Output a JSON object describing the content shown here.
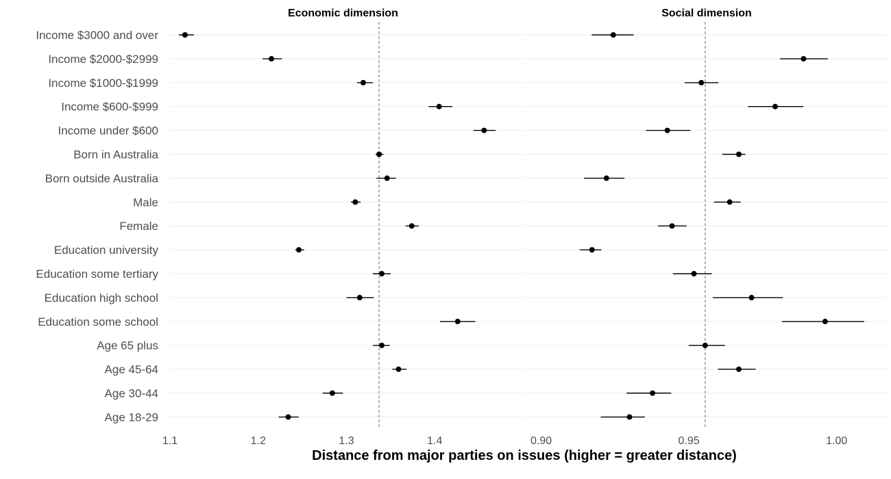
{
  "chart_data": {
    "type": "dot-errorbar",
    "xlabel": "Distance from major parties on issues (higher = greater distance)",
    "categories": [
      "Income $3000 and over",
      "Income $2000-$2999",
      "Income $1000-$1999",
      "Income $600-$999",
      "Income under $600",
      "Born in Australia",
      "Born outside Australia",
      "Male",
      "Female",
      "Education university",
      "Education some tertiary",
      "Education high school",
      "Education some school",
      "Age 65 plus",
      "Age 45-64",
      "Age 30-44",
      "Age 18-29"
    ],
    "panels": [
      {
        "title": "Economic dimension",
        "xlim": [
          1.1,
          1.5
        ],
        "ticks": [
          1.1,
          1.2,
          1.3,
          1.4
        ],
        "tick_labels": [
          "1.1",
          "1.2",
          "1.3",
          "1.4"
        ],
        "reference_line": 1.337,
        "estimates": [
          1.117,
          1.215,
          1.319,
          1.405,
          1.456,
          1.337,
          1.346,
          1.31,
          1.374,
          1.246,
          1.34,
          1.315,
          1.426,
          1.34,
          1.359,
          1.284,
          1.234
        ],
        "lower": [
          1.11,
          1.205,
          1.312,
          1.393,
          1.444,
          1.333,
          1.334,
          1.305,
          1.367,
          1.242,
          1.33,
          1.3,
          1.406,
          1.33,
          1.352,
          1.273,
          1.223
        ],
        "upper": [
          1.127,
          1.227,
          1.33,
          1.42,
          1.469,
          1.342,
          1.356,
          1.316,
          1.382,
          1.252,
          1.35,
          1.331,
          1.446,
          1.349,
          1.368,
          1.296,
          1.246
        ]
      },
      {
        "title": "Social dimension",
        "xlim": [
          0.895,
          1.017
        ],
        "ticks": [
          0.9,
          0.95,
          1.0
        ],
        "tick_labels": [
          "0.90",
          "0.95",
          "1.00"
        ],
        "reference_line": 0.9555,
        "estimates": [
          0.9244,
          0.9888,
          0.9542,
          0.9792,
          0.9427,
          0.9669,
          0.9221,
          0.9638,
          0.9443,
          0.9172,
          0.9517,
          0.9712,
          0.9961,
          0.9555,
          0.9669,
          0.9377,
          0.9299
        ],
        "lower": [
          0.9171,
          0.9808,
          0.9486,
          0.97,
          0.9355,
          0.9613,
          0.9145,
          0.9585,
          0.9395,
          0.913,
          0.9446,
          0.9581,
          0.9815,
          0.9499,
          0.9598,
          0.9289,
          0.9202
        ],
        "upper": [
          0.9313,
          0.997,
          0.96,
          0.9887,
          0.9505,
          0.9691,
          0.9282,
          0.9675,
          0.9492,
          0.9204,
          0.9577,
          0.9818,
          1.0093,
          0.9622,
          0.9726,
          0.944,
          0.9351
        ]
      }
    ],
    "grid": true,
    "legend": "none"
  }
}
